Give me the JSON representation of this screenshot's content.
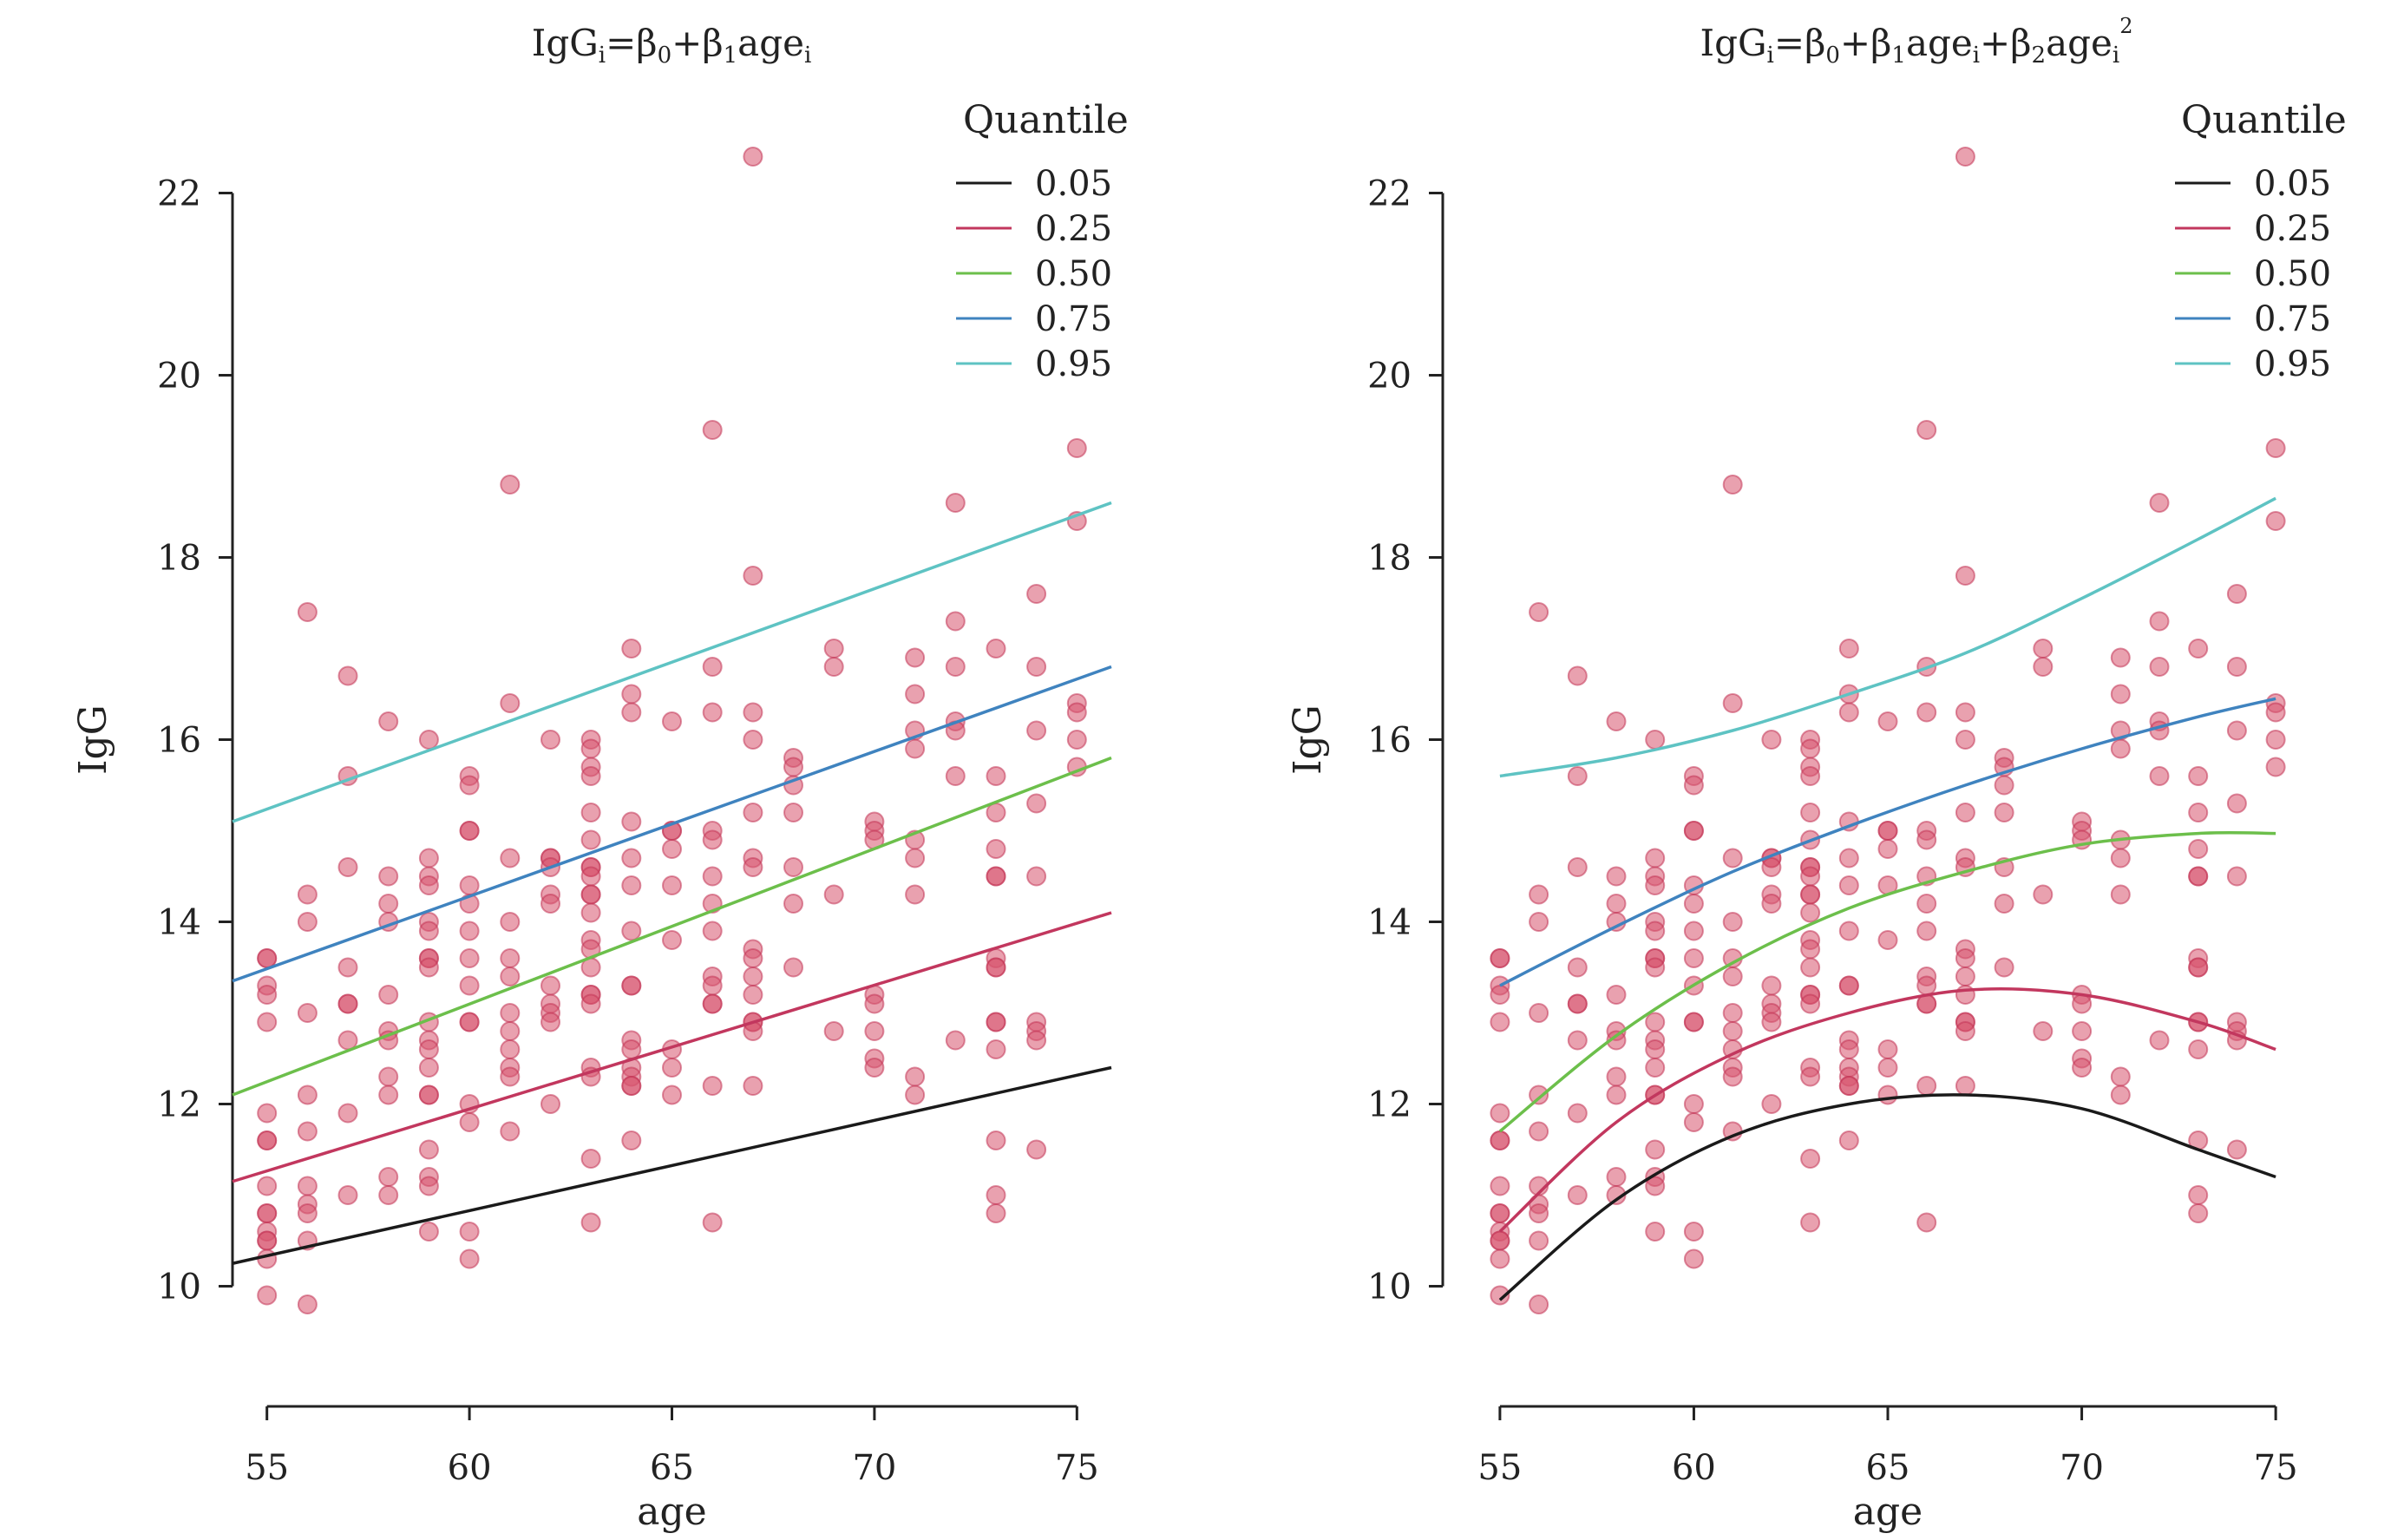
{
  "colors": {
    "q05": "#1a1a1a",
    "q25": "#c2375e",
    "q50": "#6cbf4b",
    "q75": "#3f83bf",
    "q95": "#5ec3c3",
    "points": "#d7546d"
  },
  "points": [
    [
      55,
      13.6
    ],
    [
      55,
      13.6
    ],
    [
      55,
      13.3
    ],
    [
      55,
      13.2
    ],
    [
      55,
      12.9
    ],
    [
      55,
      11.9
    ],
    [
      55,
      11.6
    ],
    [
      55,
      11.6
    ],
    [
      55,
      11.1
    ],
    [
      55,
      10.8
    ],
    [
      55,
      10.8
    ],
    [
      55,
      10.6
    ],
    [
      55,
      10.5
    ],
    [
      55,
      10.5
    ],
    [
      55,
      10.3
    ],
    [
      55,
      9.9
    ],
    [
      56,
      17.4
    ],
    [
      56,
      14.3
    ],
    [
      56,
      14.0
    ],
    [
      56,
      13.0
    ],
    [
      56,
      12.1
    ],
    [
      56,
      11.7
    ],
    [
      56,
      11.1
    ],
    [
      56,
      10.9
    ],
    [
      56,
      10.8
    ],
    [
      56,
      10.5
    ],
    [
      56,
      9.8
    ],
    [
      57,
      16.7
    ],
    [
      57,
      15.6
    ],
    [
      57,
      14.6
    ],
    [
      57,
      13.5
    ],
    [
      57,
      13.1
    ],
    [
      57,
      13.1
    ],
    [
      57,
      12.7
    ],
    [
      57,
      11.9
    ],
    [
      57,
      11.0
    ],
    [
      58,
      16.2
    ],
    [
      58,
      14.5
    ],
    [
      58,
      14.2
    ],
    [
      58,
      14.0
    ],
    [
      58,
      13.2
    ],
    [
      58,
      12.8
    ],
    [
      58,
      12.7
    ],
    [
      58,
      12.3
    ],
    [
      58,
      12.1
    ],
    [
      58,
      11.2
    ],
    [
      58,
      11.0
    ],
    [
      59,
      16.0
    ],
    [
      59,
      14.7
    ],
    [
      59,
      14.5
    ],
    [
      59,
      14.4
    ],
    [
      59,
      14.0
    ],
    [
      59,
      13.9
    ],
    [
      59,
      13.6
    ],
    [
      59,
      13.6
    ],
    [
      59,
      13.5
    ],
    [
      59,
      12.9
    ],
    [
      59,
      12.7
    ],
    [
      59,
      12.6
    ],
    [
      59,
      12.4
    ],
    [
      59,
      12.1
    ],
    [
      59,
      12.1
    ],
    [
      59,
      11.5
    ],
    [
      59,
      11.2
    ],
    [
      59,
      11.1
    ],
    [
      59,
      10.6
    ],
    [
      60,
      15.6
    ],
    [
      60,
      15.5
    ],
    [
      60,
      15.0
    ],
    [
      60,
      15.0
    ],
    [
      60,
      14.4
    ],
    [
      60,
      14.2
    ],
    [
      60,
      13.9
    ],
    [
      60,
      13.6
    ],
    [
      60,
      13.3
    ],
    [
      60,
      12.9
    ],
    [
      60,
      12.9
    ],
    [
      60,
      12.0
    ],
    [
      60,
      11.8
    ],
    [
      60,
      10.6
    ],
    [
      60,
      10.3
    ],
    [
      61,
      18.8
    ],
    [
      61,
      16.4
    ],
    [
      61,
      14.7
    ],
    [
      61,
      14.0
    ],
    [
      61,
      13.6
    ],
    [
      61,
      13.4
    ],
    [
      61,
      13.0
    ],
    [
      61,
      12.8
    ],
    [
      61,
      12.6
    ],
    [
      61,
      12.4
    ],
    [
      61,
      12.3
    ],
    [
      61,
      11.7
    ],
    [
      62,
      16.0
    ],
    [
      62,
      14.7
    ],
    [
      62,
      14.7
    ],
    [
      62,
      14.6
    ],
    [
      62,
      14.3
    ],
    [
      62,
      14.2
    ],
    [
      62,
      13.3
    ],
    [
      62,
      13.1
    ],
    [
      62,
      13.0
    ],
    [
      62,
      12.9
    ],
    [
      62,
      12.0
    ],
    [
      63,
      16.0
    ],
    [
      63,
      15.9
    ],
    [
      63,
      15.7
    ],
    [
      63,
      15.6
    ],
    [
      63,
      15.2
    ],
    [
      63,
      14.9
    ],
    [
      63,
      14.6
    ],
    [
      63,
      14.6
    ],
    [
      63,
      14.5
    ],
    [
      63,
      14.3
    ],
    [
      63,
      14.3
    ],
    [
      63,
      14.1
    ],
    [
      63,
      13.8
    ],
    [
      63,
      13.7
    ],
    [
      63,
      13.5
    ],
    [
      63,
      13.2
    ],
    [
      63,
      13.2
    ],
    [
      63,
      13.1
    ],
    [
      63,
      12.4
    ],
    [
      63,
      12.3
    ],
    [
      63,
      11.4
    ],
    [
      63,
      10.7
    ],
    [
      64,
      17.0
    ],
    [
      64,
      16.5
    ],
    [
      64,
      16.3
    ],
    [
      64,
      15.1
    ],
    [
      64,
      14.7
    ],
    [
      64,
      14.4
    ],
    [
      64,
      13.9
    ],
    [
      64,
      13.3
    ],
    [
      64,
      13.3
    ],
    [
      64,
      12.7
    ],
    [
      64,
      12.6
    ],
    [
      64,
      12.4
    ],
    [
      64,
      12.3
    ],
    [
      64,
      12.2
    ],
    [
      64,
      12.2
    ],
    [
      64,
      11.6
    ],
    [
      65,
      16.2
    ],
    [
      65,
      15.0
    ],
    [
      65,
      15.0
    ],
    [
      65,
      14.8
    ],
    [
      65,
      14.4
    ],
    [
      65,
      13.8
    ],
    [
      65,
      12.6
    ],
    [
      65,
      12.4
    ],
    [
      65,
      12.1
    ],
    [
      66,
      19.4
    ],
    [
      66,
      16.8
    ],
    [
      66,
      16.3
    ],
    [
      66,
      15.0
    ],
    [
      66,
      14.9
    ],
    [
      66,
      14.5
    ],
    [
      66,
      14.2
    ],
    [
      66,
      13.9
    ],
    [
      66,
      13.4
    ],
    [
      66,
      13.3
    ],
    [
      66,
      13.1
    ],
    [
      66,
      13.1
    ],
    [
      66,
      12.2
    ],
    [
      66,
      10.7
    ],
    [
      67,
      22.4
    ],
    [
      67,
      17.8
    ],
    [
      67,
      16.3
    ],
    [
      67,
      16.0
    ],
    [
      67,
      15.2
    ],
    [
      67,
      14.7
    ],
    [
      67,
      14.6
    ],
    [
      67,
      13.7
    ],
    [
      67,
      13.6
    ],
    [
      67,
      13.4
    ],
    [
      67,
      13.2
    ],
    [
      67,
      12.9
    ],
    [
      67,
      12.9
    ],
    [
      67,
      12.8
    ],
    [
      67,
      12.2
    ],
    [
      68,
      15.8
    ],
    [
      68,
      15.7
    ],
    [
      68,
      15.5
    ],
    [
      68,
      15.2
    ],
    [
      68,
      14.6
    ],
    [
      68,
      14.2
    ],
    [
      68,
      13.5
    ],
    [
      69,
      17.0
    ],
    [
      69,
      16.8
    ],
    [
      69,
      14.3
    ],
    [
      69,
      12.8
    ],
    [
      70,
      15.1
    ],
    [
      70,
      15.0
    ],
    [
      70,
      14.9
    ],
    [
      70,
      13.2
    ],
    [
      70,
      13.1
    ],
    [
      70,
      12.8
    ],
    [
      70,
      12.5
    ],
    [
      70,
      12.4
    ],
    [
      71,
      16.9
    ],
    [
      71,
      16.5
    ],
    [
      71,
      16.1
    ],
    [
      71,
      15.9
    ],
    [
      71,
      14.9
    ],
    [
      71,
      14.7
    ],
    [
      71,
      14.3
    ],
    [
      71,
      12.3
    ],
    [
      71,
      12.1
    ],
    [
      72,
      18.6
    ],
    [
      72,
      17.3
    ],
    [
      72,
      16.8
    ],
    [
      72,
      16.2
    ],
    [
      72,
      16.1
    ],
    [
      72,
      15.6
    ],
    [
      72,
      12.7
    ],
    [
      73,
      17.0
    ],
    [
      73,
      15.6
    ],
    [
      73,
      15.2
    ],
    [
      73,
      14.8
    ],
    [
      73,
      14.5
    ],
    [
      73,
      14.5
    ],
    [
      73,
      13.6
    ],
    [
      73,
      13.5
    ],
    [
      73,
      13.5
    ],
    [
      73,
      12.9
    ],
    [
      73,
      12.9
    ],
    [
      73,
      12.6
    ],
    [
      73,
      11.6
    ],
    [
      73,
      11.0
    ],
    [
      73,
      10.8
    ],
    [
      74,
      17.6
    ],
    [
      74,
      16.8
    ],
    [
      74,
      16.1
    ],
    [
      74,
      15.3
    ],
    [
      74,
      14.5
    ],
    [
      74,
      12.9
    ],
    [
      74,
      12.8
    ],
    [
      74,
      12.7
    ],
    [
      74,
      11.5
    ],
    [
      75,
      19.2
    ],
    [
      75,
      18.4
    ],
    [
      75,
      16.4
    ],
    [
      75,
      16.3
    ],
    [
      75,
      16.0
    ],
    [
      75,
      15.7
    ]
  ],
  "chart_data": [
    {
      "type": "scatter",
      "title_parts": [
        "IgG",
        "i",
        "=β",
        "0",
        "+β",
        "1",
        "age",
        "i"
      ],
      "xlabel": "age",
      "ylabel": "IgG",
      "xlim": [
        54.15,
        75.85
      ],
      "ylim": [
        9.3,
        22.9
      ],
      "xticks": [
        55,
        60,
        65,
        70,
        75
      ],
      "yticks": [
        10,
        12,
        14,
        16,
        18,
        20,
        22
      ],
      "legend": {
        "title": "Quantile",
        "position": "top-right",
        "entries": [
          "0.05",
          "0.25",
          "0.50",
          "0.75",
          "0.95"
        ]
      },
      "series": [
        {
          "name": "0.05",
          "x": [
            54.15,
            75.85
          ],
          "y": [
            10.25,
            12.4
          ]
        },
        {
          "name": "0.25",
          "x": [
            54.15,
            75.85
          ],
          "y": [
            11.15,
            14.1
          ]
        },
        {
          "name": "0.50",
          "x": [
            54.15,
            75.85
          ],
          "y": [
            12.1,
            15.8
          ]
        },
        {
          "name": "0.75",
          "x": [
            54.15,
            75.85
          ],
          "y": [
            13.35,
            16.8
          ]
        },
        {
          "name": "0.95",
          "x": [
            54.15,
            75.85
          ],
          "y": [
            15.1,
            18.6
          ]
        }
      ]
    },
    {
      "type": "scatter",
      "title_parts": [
        "IgG",
        "i",
        "=β",
        "0",
        "+β",
        "1",
        "age",
        "i",
        "+β",
        "2",
        "age",
        "i",
        "2"
      ],
      "xlabel": "age",
      "ylabel": "IgG",
      "xlim": [
        54.6,
        75.4
      ],
      "ylim": [
        9.3,
        22.9
      ],
      "xticks": [
        55,
        60,
        65,
        70,
        75
      ],
      "yticks": [
        10,
        12,
        14,
        16,
        18,
        20,
        22
      ],
      "legend": {
        "title": "Quantile",
        "position": "top-right",
        "entries": [
          "0.05",
          "0.25",
          "0.50",
          "0.75",
          "0.95"
        ]
      },
      "series": [
        {
          "name": "0.05",
          "x": [
            55,
            58,
            61,
            64,
            67,
            70,
            73,
            75
          ],
          "y": [
            9.85,
            10.95,
            11.65,
            12.0,
            12.1,
            11.95,
            11.5,
            11.2
          ]
        },
        {
          "name": "0.25",
          "x": [
            55,
            58,
            61,
            64,
            67,
            70,
            73,
            75
          ],
          "y": [
            10.6,
            11.8,
            12.55,
            13.0,
            13.25,
            13.2,
            12.9,
            12.6
          ]
        },
        {
          "name": "0.50",
          "x": [
            55,
            58,
            61,
            64,
            67,
            70,
            73,
            75
          ],
          "y": [
            11.7,
            12.75,
            13.55,
            14.15,
            14.55,
            14.85,
            14.97,
            14.97
          ]
        },
        {
          "name": "0.75",
          "x": [
            55,
            58,
            61,
            64,
            67,
            70,
            73,
            75
          ],
          "y": [
            13.3,
            13.95,
            14.55,
            15.05,
            15.5,
            15.9,
            16.25,
            16.45
          ]
        },
        {
          "name": "0.95",
          "x": [
            55,
            58,
            61,
            64,
            67,
            70,
            73,
            75
          ],
          "y": [
            15.6,
            15.8,
            16.1,
            16.5,
            16.95,
            17.55,
            18.2,
            18.65
          ]
        }
      ]
    }
  ]
}
